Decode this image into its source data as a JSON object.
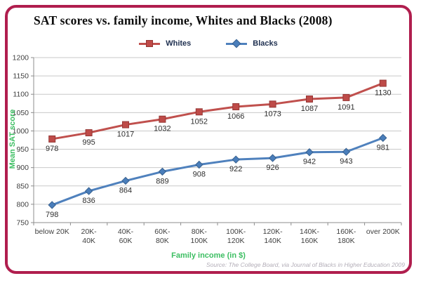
{
  "card": {
    "border_color": "#B01E4E",
    "background": "#FFFFFF"
  },
  "chart_data": {
    "type": "line",
    "title": "SAT scores vs. family income, Whites and Blacks (2008)",
    "categories": [
      [
        "below 20K"
      ],
      [
        "20K-",
        "40K"
      ],
      [
        "40K-",
        "60K"
      ],
      [
        "60K-",
        "80K"
      ],
      [
        "80K-",
        "100K"
      ],
      [
        "100K-",
        "120K"
      ],
      [
        "120K-",
        "140K"
      ],
      [
        "140K-",
        "160K"
      ],
      [
        "160K-",
        "180K"
      ],
      [
        "over 200K"
      ]
    ],
    "series": [
      {
        "name": "Whites",
        "color": "#C0504D",
        "marker": "square",
        "marker_fill": "#BE4B48",
        "marker_stroke": "#953735",
        "values": [
          978,
          995,
          1017,
          1032,
          1052,
          1066,
          1073,
          1087,
          1091,
          1130
        ]
      },
      {
        "name": "Blacks",
        "color": "#4F81BD",
        "marker": "diamond",
        "marker_fill": "#4A7EBB",
        "marker_stroke": "#38618F",
        "values": [
          798,
          836,
          864,
          889,
          908,
          922,
          926,
          942,
          943,
          981
        ]
      }
    ],
    "xlabel": "Family income (in $)",
    "ylabel": "Mean SAT score",
    "ylim": [
      750,
      1200
    ],
    "ytick_step": 50,
    "grid": true,
    "legend_position": "top",
    "axis_title_color": "#3CBE62",
    "tick_label_color": "#3F3F3F",
    "data_label_color": "#2E2E2E",
    "grid_color": "#C9C9C9",
    "axis_color": "#8C8C8C",
    "source": "Source: The College Board, via Journal of Blacks in Higher Education 2009"
  }
}
